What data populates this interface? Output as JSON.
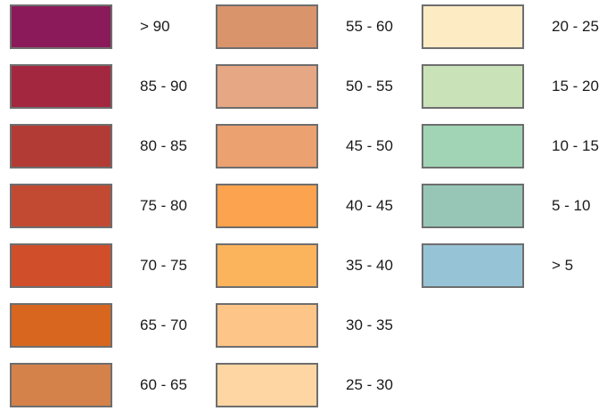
{
  "legend": {
    "columns": [
      {
        "items": [
          {
            "label": "> 90",
            "color": "#8b1a5a"
          },
          {
            "label": "85 - 90",
            "color": "#a3283f"
          },
          {
            "label": "80 - 85",
            "color": "#b33b35"
          },
          {
            "label": "75 - 80",
            "color": "#c24a33"
          },
          {
            "label": "70 - 75",
            "color": "#d04e2a"
          },
          {
            "label": "65 - 70",
            "color": "#d8661f"
          },
          {
            "label": "60 - 65",
            "color": "#d4824a"
          }
        ]
      },
      {
        "items": [
          {
            "label": "55 - 60",
            "color": "#d9946c"
          },
          {
            "label": "50 - 55",
            "color": "#e5a784"
          },
          {
            "label": "45 - 50",
            "color": "#eba170"
          },
          {
            "label": "40 - 45",
            "color": "#fba34f"
          },
          {
            "label": "35 - 40",
            "color": "#fbb45c"
          },
          {
            "label": "30 - 35",
            "color": "#fec588"
          },
          {
            "label": "25 - 30",
            "color": "#fdd6a4"
          }
        ]
      },
      {
        "items": [
          {
            "label": "20 - 25",
            "color": "#fdebc4"
          },
          {
            "label": "15 - 20",
            "color": "#cae2b8"
          },
          {
            "label": "10 - 15",
            "color": "#a1d4b5"
          },
          {
            "label": "5 - 10",
            "color": "#97c6b7"
          },
          {
            "label": "> 5",
            "color": "#97c3d6"
          }
        ]
      }
    ]
  }
}
